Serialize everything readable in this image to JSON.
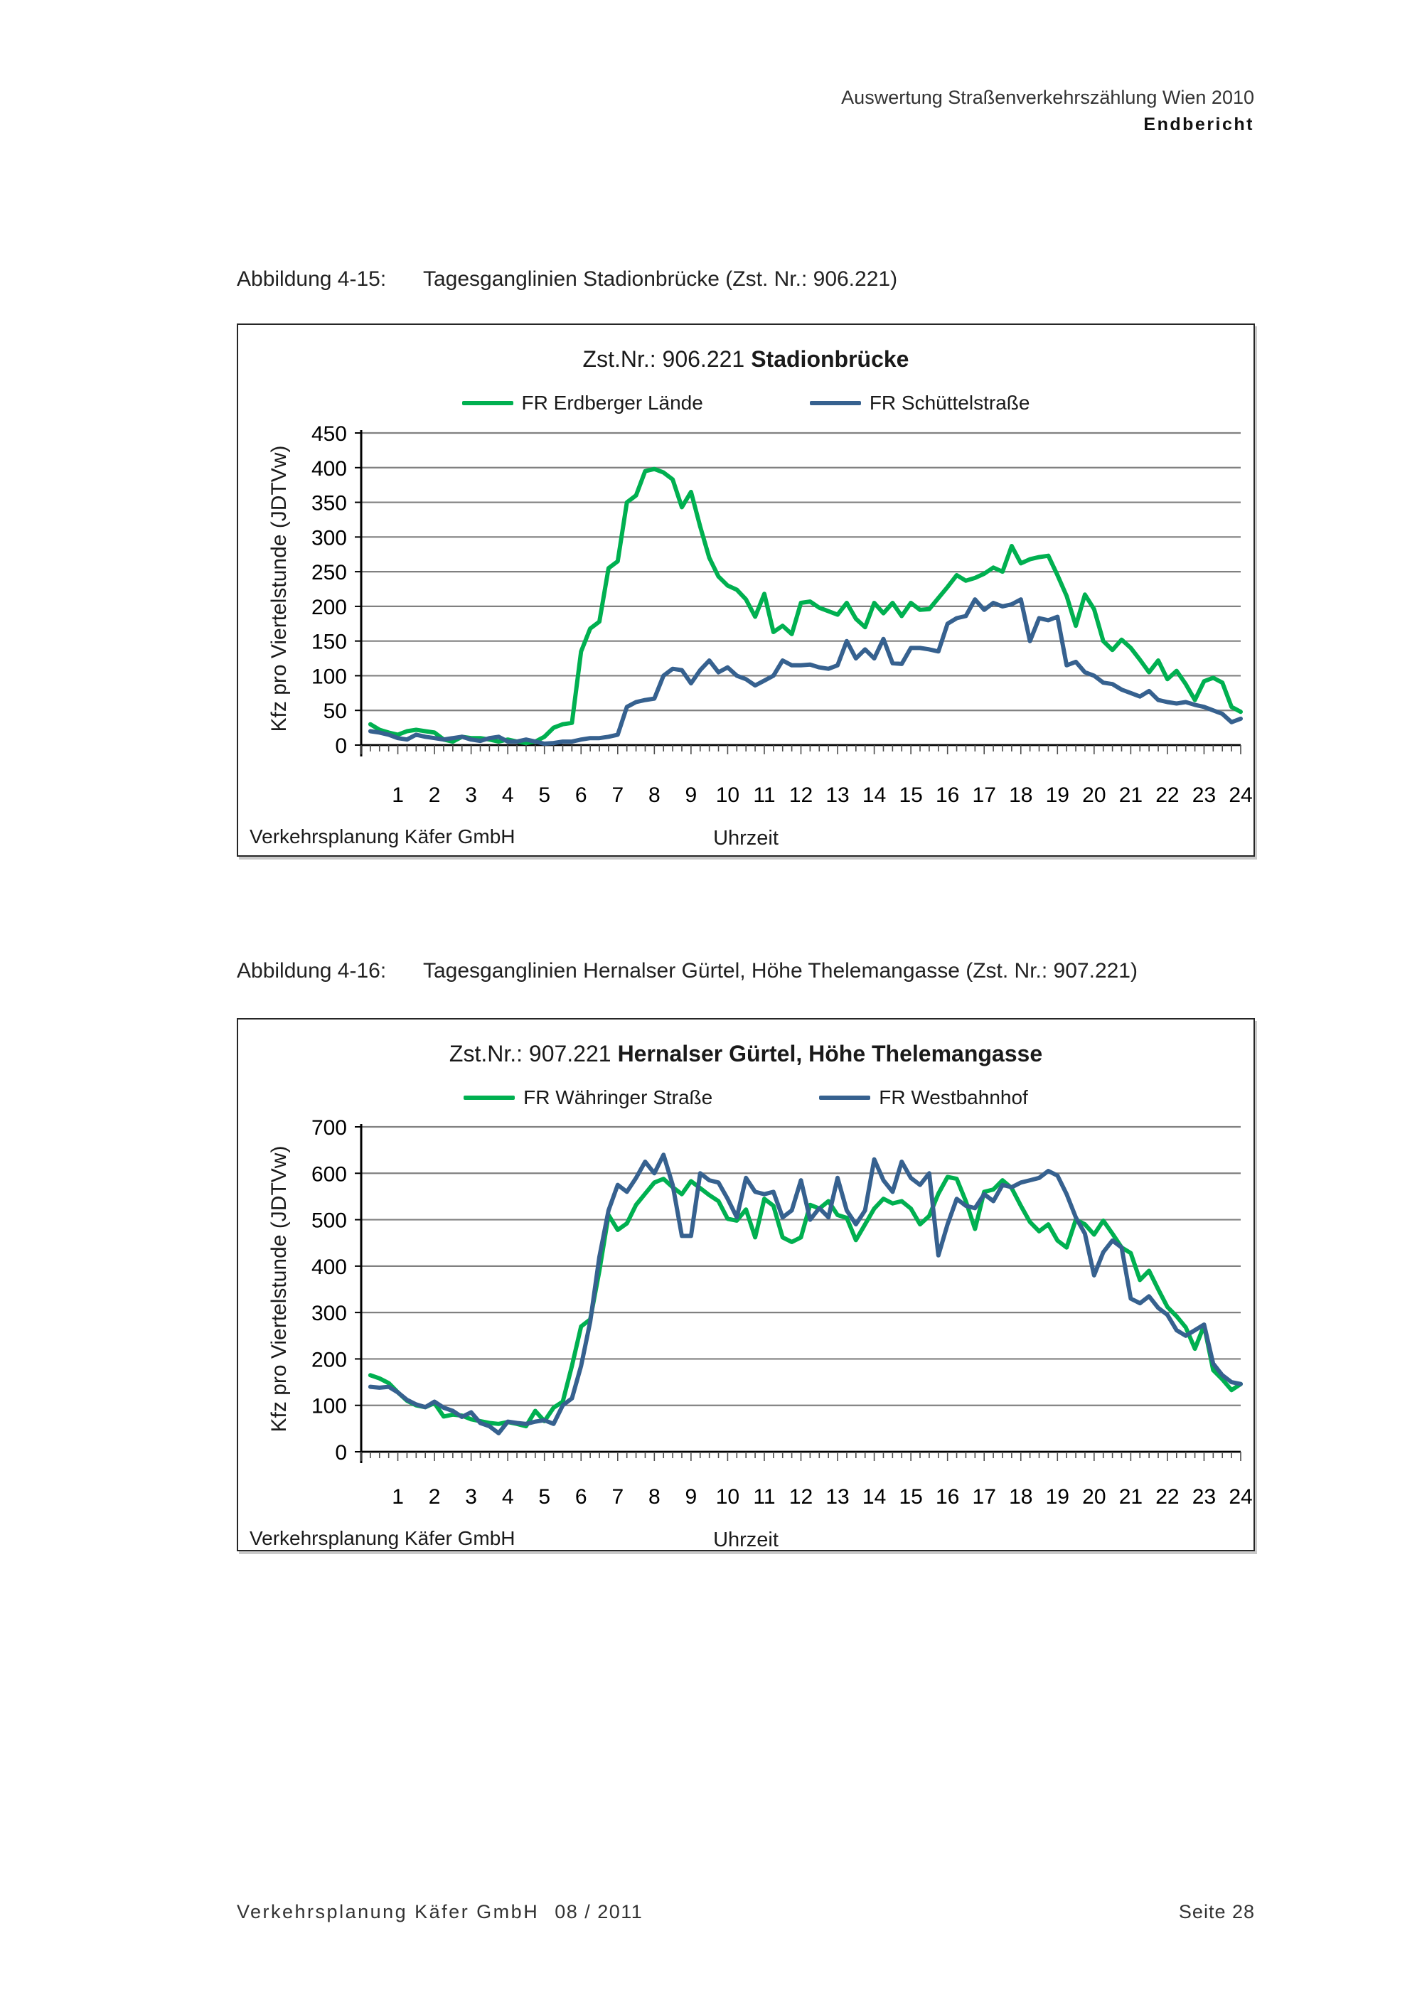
{
  "page": {
    "header_line1": "Auswertung Straßenverkehrszählung Wien 2010",
    "header_line2": "Endbericht",
    "footer_left": "Verkehrsplanung Käfer GmbH",
    "footer_date": "08 / 2011",
    "footer_right": "Seite 28"
  },
  "figures": [
    {
      "caption_label": "Abbildung 4-15:",
      "caption_text": "Tagesganglinien Stadionbrücke (Zst. Nr.: 906.221)"
    },
    {
      "caption_label": "Abbildung 4-16:",
      "caption_text": "Tagesganglinien Hernalser Gürtel, Höhe Thelemangasse (Zst. Nr.: 907.221)"
    }
  ],
  "colors": {
    "series_green": "#00B050",
    "series_blue": "#36618F",
    "grid": "#808080",
    "axis": "#000000"
  },
  "chart_data": [
    {
      "type": "line",
      "title_prefix": "Zst.Nr.: 906.221",
      "title_bold": "Stadionbrücke",
      "xlabel": "Uhrzeit",
      "ylabel": "Kfz pro Viertelstunde (JDTVw)",
      "source_note": "Verkehrsplanung Käfer GmbH",
      "x_unit": "hours, values every quarter hour from 0:15 to 24:00",
      "x_tick_labels": [
        "1",
        "2",
        "3",
        "4",
        "5",
        "6",
        "7",
        "8",
        "9",
        "10",
        "11",
        "12",
        "13",
        "14",
        "15",
        "16",
        "17",
        "18",
        "19",
        "20",
        "21",
        "22",
        "23",
        "24"
      ],
      "y_tick_labels": [
        "0",
        "50",
        "100",
        "150",
        "200",
        "250",
        "300",
        "350",
        "400",
        "450"
      ],
      "ylim": [
        0,
        450
      ],
      "ystep": 50,
      "grid": true,
      "legend_position": "top",
      "series": [
        {
          "name": "FR Erdberger Lände",
          "color": "#00B050",
          "values": [
            30,
            22,
            18,
            15,
            20,
            22,
            20,
            18,
            8,
            5,
            12,
            10,
            10,
            8,
            5,
            8,
            5,
            3,
            5,
            12,
            25,
            30,
            32,
            135,
            168,
            178,
            255,
            265,
            350,
            360,
            395,
            398,
            393,
            383,
            343,
            365,
            315,
            270,
            243,
            230,
            224,
            210,
            185,
            218,
            163,
            172,
            160,
            205,
            207,
            198,
            193,
            188,
            205,
            182,
            170,
            205,
            190,
            205,
            186,
            205,
            195,
            196,
            212,
            228,
            245,
            237,
            241,
            247,
            256,
            250,
            287,
            262,
            268,
            271,
            273,
            245,
            215,
            172,
            217,
            196,
            150,
            137,
            152,
            140,
            123,
            105,
            122,
            95,
            107,
            88,
            65,
            92,
            97,
            90,
            55,
            48
          ]
        },
        {
          "name": "FR Schüttelstraße",
          "color": "#36618F",
          "values": [
            20,
            18,
            15,
            10,
            8,
            15,
            12,
            10,
            8,
            10,
            12,
            8,
            6,
            10,
            12,
            5,
            5,
            8,
            5,
            2,
            3,
            5,
            5,
            8,
            10,
            10,
            12,
            15,
            55,
            62,
            65,
            67,
            100,
            110,
            108,
            89,
            108,
            122,
            105,
            112,
            100,
            95,
            86,
            93,
            100,
            122,
            115,
            115,
            116,
            112,
            110,
            115,
            150,
            125,
            138,
            125,
            153,
            118,
            117,
            140,
            140,
            138,
            135,
            175,
            183,
            186,
            210,
            195,
            205,
            200,
            203,
            210,
            150,
            183,
            180,
            185,
            115,
            120,
            105,
            100,
            90,
            88,
            80,
            75,
            70,
            78,
            65,
            62,
            60,
            62,
            58,
            55,
            50,
            45,
            33,
            38
          ]
        }
      ]
    },
    {
      "type": "line",
      "title_prefix": "Zst.Nr.: 907.221",
      "title_bold": "Hernalser Gürtel, Höhe Thelemangasse",
      "xlabel": "Uhrzeit",
      "ylabel": "Kfz pro Viertelstunde (JDTVw)",
      "source_note": "Verkehrsplanung Käfer GmbH",
      "x_unit": "hours, values every quarter hour from 0:15 to 24:00",
      "x_tick_labels": [
        "1",
        "2",
        "3",
        "4",
        "5",
        "6",
        "7",
        "8",
        "9",
        "10",
        "11",
        "12",
        "13",
        "14",
        "15",
        "16",
        "17",
        "18",
        "19",
        "20",
        "21",
        "22",
        "23",
        "24"
      ],
      "y_tick_labels": [
        "0",
        "100",
        "200",
        "300",
        "400",
        "500",
        "600",
        "700"
      ],
      "ylim": [
        0,
        700
      ],
      "ystep": 100,
      "grid": true,
      "legend_position": "top",
      "series": [
        {
          "name": "FR Währinger Straße",
          "color": "#00B050",
          "values": [
            165,
            158,
            148,
            128,
            110,
            100,
            96,
            105,
            76,
            80,
            78,
            70,
            66,
            62,
            60,
            64,
            60,
            55,
            88,
            66,
            95,
            108,
            185,
            270,
            285,
            390,
            510,
            478,
            492,
            532,
            556,
            580,
            588,
            570,
            555,
            583,
            568,
            553,
            540,
            502,
            498,
            522,
            462,
            545,
            530,
            462,
            452,
            462,
            532,
            524,
            540,
            510,
            504,
            456,
            490,
            524,
            545,
            535,
            540,
            524,
            490,
            508,
            556,
            592,
            588,
            540,
            480,
            560,
            565,
            585,
            568,
            530,
            495,
            475,
            490,
            455,
            440,
            500,
            490,
            468,
            498,
            470,
            440,
            428,
            370,
            390,
            350,
            312,
            292,
            268,
            222,
            272,
            176,
            156,
            133,
            146
          ]
        },
        {
          "name": "FR Westbahnhof",
          "color": "#36618F",
          "values": [
            140,
            138,
            140,
            128,
            112,
            102,
            96,
            108,
            95,
            88,
            75,
            85,
            62,
            55,
            40,
            65,
            62,
            60,
            65,
            68,
            60,
            100,
            115,
            185,
            280,
            420,
            520,
            575,
            560,
            590,
            625,
            600,
            640,
            575,
            465,
            465,
            600,
            585,
            580,
            545,
            505,
            590,
            560,
            555,
            560,
            505,
            520,
            585,
            500,
            525,
            505,
            590,
            520,
            490,
            520,
            630,
            585,
            560,
            625,
            590,
            575,
            600,
            423,
            490,
            545,
            530,
            525,
            555,
            540,
            575,
            570,
            580,
            585,
            590,
            605,
            595,
            555,
            505,
            470,
            380,
            430,
            455,
            440,
            330,
            320,
            335,
            310,
            295,
            262,
            250,
            262,
            274,
            190,
            165,
            150,
            146
          ]
        }
      ]
    }
  ]
}
